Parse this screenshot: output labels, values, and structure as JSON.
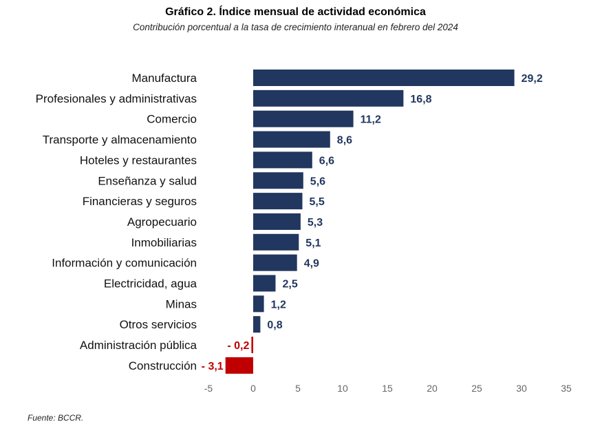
{
  "title": "Gráfico 2. Índice mensual de actividad económica",
  "subtitle": "Contribución porcentual a la tasa de crecimiento interanual en febrero del 2024",
  "source": "Fuente:  BCCR.",
  "colors": {
    "positive": "#22375F",
    "negative": "#C00000"
  },
  "chart_data": {
    "type": "bar",
    "orientation": "horizontal",
    "categories": [
      "Manufactura",
      "Profesionales y administrativas",
      "Comercio",
      "Transporte y almacenamiento",
      "Hoteles y restaurantes",
      "Enseñanza y salud",
      "Financieras y seguros",
      "Agropecuario",
      "Inmobiliarias",
      "Información y comunicación",
      "Electricidad, agua",
      "Minas",
      "Otros servicios",
      "Administración pública",
      "Construcción"
    ],
    "values": [
      29.2,
      16.8,
      11.2,
      8.6,
      6.6,
      5.6,
      5.5,
      5.3,
      5.1,
      4.9,
      2.5,
      1.2,
      0.8,
      -0.2,
      -3.1
    ],
    "data_labels": [
      "29,2",
      "16,8",
      "11,2",
      "8,6",
      "6,6",
      "5,6",
      "5,5",
      "5,3",
      "5,1",
      "4,9",
      "2,5",
      "1,2",
      "0,8",
      "- 0,2",
      "- 3,1"
    ],
    "xlim": [
      -5,
      35
    ],
    "xticks": [
      -5,
      0,
      5,
      10,
      15,
      20,
      25,
      30,
      35
    ],
    "xtick_labels": [
      "-5",
      "0",
      "5",
      "10",
      "15",
      "20",
      "25",
      "30",
      "35"
    ],
    "grid": false,
    "legend": "none"
  }
}
